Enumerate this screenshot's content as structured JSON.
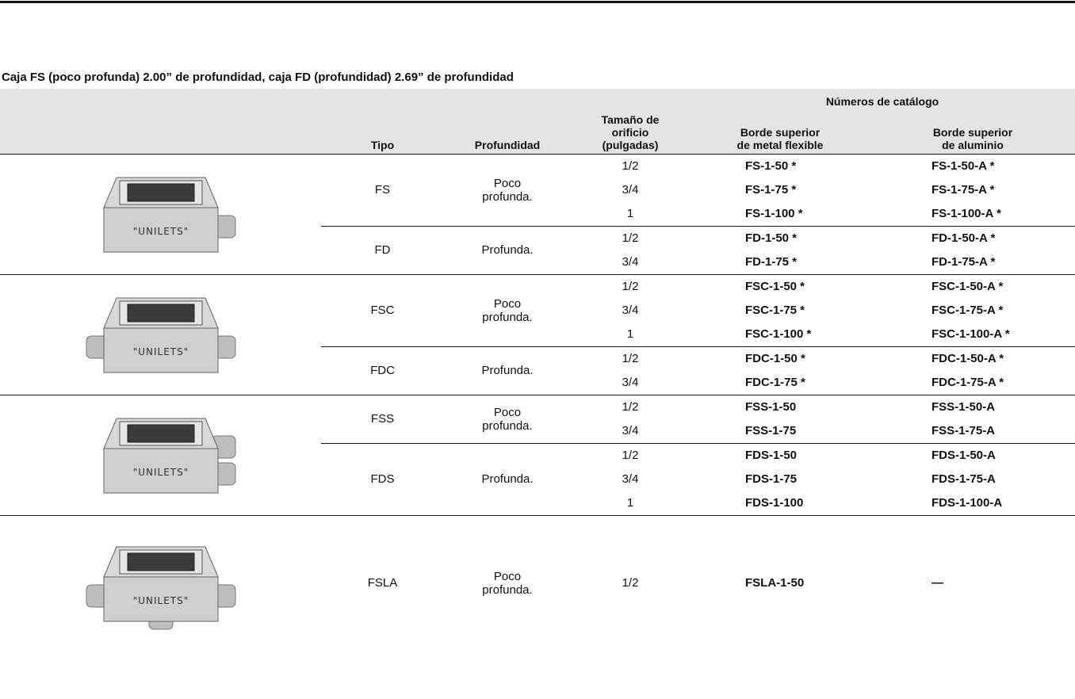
{
  "title": "Caja FS (poco profunda) 2.00” de profundidad, caja FD (profundidad) 2.69” de profundidad",
  "table": {
    "header": {
      "tipo": "Tipo",
      "profundidad": "Profundidad",
      "tamano": "Tamaño de\norificio\n(pulgadas)",
      "catalogo": "Números de catálogo",
      "flexible": "Borde superior\nde metal flexible",
      "aluminio": "Borde superior\nde aluminio"
    },
    "groups": [
      {
        "image_text": "\"UNILETS\"",
        "types": [
          {
            "tipo": "FS",
            "profundidad": "Poco\nprofunda.",
            "rows": [
              [
                "1/2",
                "FS-1-50 *",
                "FS-1-50-A *"
              ],
              [
                "3/4",
                "FS-1-75 *",
                "FS-1-75-A *"
              ],
              [
                "1",
                "FS-1-100 *",
                "FS-1-100-A *"
              ]
            ]
          },
          {
            "tipo": "FD",
            "profundidad": "Profunda.",
            "rows": [
              [
                "1/2",
                "FD-1-50 *",
                "FD-1-50-A *"
              ],
              [
                "3/4",
                "FD-1-75 *",
                "FD-1-75-A *"
              ]
            ]
          }
        ]
      },
      {
        "image_text": "\"UNILETS\"",
        "types": [
          {
            "tipo": "FSC",
            "profundidad": "Poco\nprofunda.",
            "rows": [
              [
                "1/2",
                "FSC-1-50 *",
                "FSC-1-50-A *"
              ],
              [
                "3/4",
                "FSC-1-75 *",
                "FSC-1-75-A *"
              ],
              [
                "1",
                "FSC-1-100 *",
                "FSC-1-100-A *"
              ]
            ]
          },
          {
            "tipo": "FDC",
            "profundidad": "Profunda.",
            "rows": [
              [
                "1/2",
                "FDC-1-50 *",
                "FDC-1-50-A *"
              ],
              [
                "3/4",
                "FDC-1-75 *",
                "FDC-1-75-A *"
              ]
            ]
          }
        ]
      },
      {
        "image_text": "\"UNILETS\"",
        "types": [
          {
            "tipo": "FSS",
            "profundidad": "Poco\nprofunda.",
            "rows": [
              [
                "1/2",
                "FSS-1-50",
                "FSS-1-50-A"
              ],
              [
                "3/4",
                "FSS-1-75",
                "FSS-1-75-A"
              ]
            ]
          },
          {
            "tipo": "FDS",
            "profundidad": "Profunda.",
            "rows": [
              [
                "1/2",
                "FDS-1-50",
                "FDS-1-50-A"
              ],
              [
                "3/4",
                "FDS-1-75",
                "FDS-1-75-A"
              ],
              [
                "1",
                "FDS-1-100",
                "FDS-1-100-A"
              ]
            ]
          }
        ]
      },
      {
        "image_text": "\"UNILETS\"",
        "types": [
          {
            "tipo": "FSLA",
            "profundidad": "Poco\nprofunda.",
            "rows": [
              [
                "1/2",
                "FSLA-1-50",
                "—"
              ]
            ]
          }
        ]
      }
    ]
  }
}
